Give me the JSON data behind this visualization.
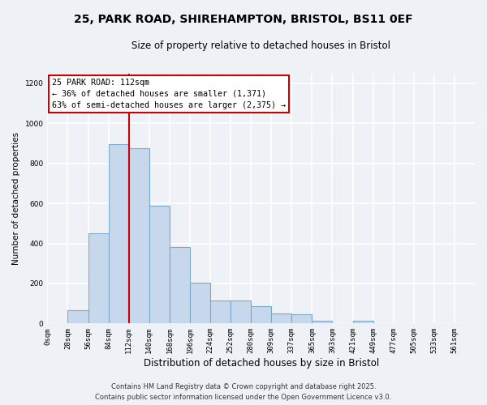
{
  "title_line1": "25, PARK ROAD, SHIREHAMPTON, BRISTOL, BS11 0EF",
  "title_line2": "Size of property relative to detached houses in Bristol",
  "xlabel": "Distribution of detached houses by size in Bristol",
  "ylabel": "Number of detached properties",
  "bar_labels": [
    "0sqm",
    "28sqm",
    "56sqm",
    "84sqm",
    "112sqm",
    "140sqm",
    "168sqm",
    "196sqm",
    "224sqm",
    "252sqm",
    "280sqm",
    "309sqm",
    "337sqm",
    "365sqm",
    "393sqm",
    "421sqm",
    "449sqm",
    "477sqm",
    "505sqm",
    "533sqm",
    "561sqm"
  ],
  "bar_values": [
    0,
    65,
    450,
    895,
    875,
    590,
    380,
    205,
    115,
    115,
    85,
    50,
    45,
    15,
    0,
    15,
    0,
    0,
    0,
    0,
    0
  ],
  "bar_color": "#c8d8ec",
  "bar_edge_color": "#7aaac8",
  "vline_x": 4,
  "vline_color": "#cc0000",
  "ylim": [
    0,
    1250
  ],
  "yticks": [
    0,
    200,
    400,
    600,
    800,
    1000,
    1200
  ],
  "annotation_title": "25 PARK ROAD: 112sqm",
  "annotation_line1": "← 36% of detached houses are smaller (1,371)",
  "annotation_line2": "63% of semi-detached houses are larger (2,375) →",
  "annotation_box_color": "#ffffff",
  "annotation_box_edge": "#cc0000",
  "footer_line1": "Contains HM Land Registry data © Crown copyright and database right 2025.",
  "footer_line2": "Contains public sector information licensed under the Open Government Licence v3.0.",
  "background_color": "#eef2f7",
  "grid_color": "#ffffff"
}
